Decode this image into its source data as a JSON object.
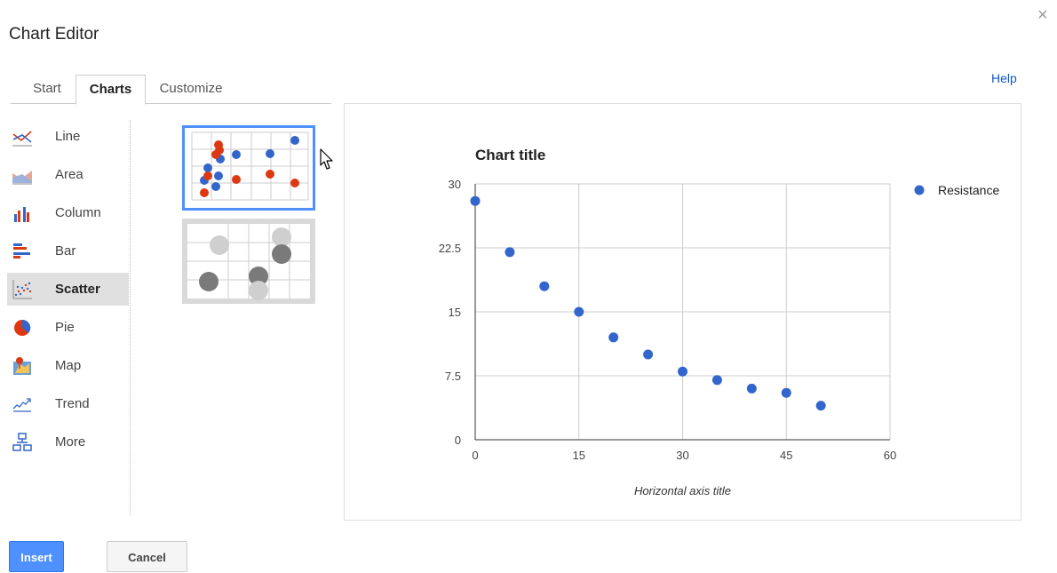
{
  "dialog": {
    "title": "Chart Editor",
    "help_label": "Help",
    "close_glyph": "×"
  },
  "tabs": [
    {
      "label": "Start",
      "active": false
    },
    {
      "label": "Charts",
      "active": true
    },
    {
      "label": "Customize",
      "active": false
    }
  ],
  "sidebar": {
    "items": [
      {
        "label": "Line",
        "icon": "line-chart-icon"
      },
      {
        "label": "Area",
        "icon": "area-chart-icon"
      },
      {
        "label": "Column",
        "icon": "column-chart-icon"
      },
      {
        "label": "Bar",
        "icon": "bar-chart-icon"
      },
      {
        "label": "Scatter",
        "icon": "scatter-chart-icon",
        "selected": true
      },
      {
        "label": "Pie",
        "icon": "pie-chart-icon"
      },
      {
        "label": "Map",
        "icon": "map-chart-icon"
      },
      {
        "label": "Trend",
        "icon": "trend-chart-icon"
      },
      {
        "label": "More",
        "icon": "more-charts-icon"
      }
    ]
  },
  "colors": {
    "series": "#3366cc",
    "accent_red": "#dc3912",
    "selection": "#4d90fe"
  },
  "buttons": {
    "insert_label": "Insert",
    "cancel_label": "Cancel"
  },
  "chart_data": {
    "type": "scatter",
    "title": "Chart title",
    "xlabel": "Horizontal axis title",
    "ylabel": "",
    "xlim": [
      0,
      60
    ],
    "ylim": [
      0,
      30
    ],
    "x_ticks": [
      "0",
      "15",
      "30",
      "45",
      "60"
    ],
    "y_ticks": [
      "0",
      "7.5",
      "15",
      "22.5",
      "30"
    ],
    "grid": true,
    "legend_position": "right",
    "series": [
      {
        "name": "Resistance",
        "color": "#3366cc",
        "x": [
          0,
          5,
          10,
          15,
          20,
          25,
          30,
          35,
          40,
          45,
          50
        ],
        "y": [
          28,
          22,
          18,
          15,
          12,
          10,
          8,
          7,
          6,
          5.5,
          4
        ]
      }
    ]
  }
}
